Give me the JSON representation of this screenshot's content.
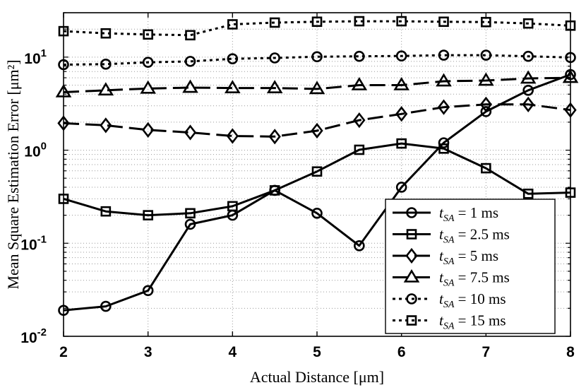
{
  "chart_data": {
    "type": "line",
    "xlabel": "Actual Distance [μm]",
    "ylabel": "Mean Square Estimation Error [μm²]",
    "xlim": [
      2,
      8
    ],
    "ylim": [
      0.01,
      30
    ],
    "yscale": "log",
    "grid": true,
    "legend_position": "bottom-right",
    "x_ticks": [
      "2",
      "3",
      "4",
      "5",
      "6",
      "7",
      "8"
    ],
    "x": [
      2,
      2.5,
      3,
      3.5,
      4,
      4.5,
      5,
      5.5,
      6,
      6.5,
      7,
      7.5,
      8
    ],
    "series": [
      {
        "name": "t_SA = 1 ms",
        "marker": "circle",
        "line": "solid",
        "values": [
          0.019,
          0.021,
          0.031,
          0.16,
          0.2,
          0.37,
          0.21,
          0.094,
          0.4,
          1.2,
          2.6,
          4.4,
          6.5
        ]
      },
      {
        "name": "t_SA = 2.5 ms",
        "marker": "square",
        "line": "solid",
        "values": [
          0.3,
          0.22,
          0.2,
          0.21,
          0.25,
          0.37,
          0.59,
          1.01,
          1.18,
          1.04,
          0.64,
          0.34,
          0.35
        ]
      },
      {
        "name": "t_SA = 5 ms",
        "marker": "diamond",
        "line": "dashed",
        "values": [
          1.95,
          1.85,
          1.65,
          1.55,
          1.42,
          1.4,
          1.62,
          2.1,
          2.45,
          2.9,
          3.1,
          3.1,
          2.7
        ]
      },
      {
        "name": "t_SA = 7.5 ms",
        "marker": "triangle",
        "line": "dashed",
        "values": [
          4.2,
          4.4,
          4.6,
          4.7,
          4.65,
          4.65,
          4.55,
          5.0,
          5.0,
          5.5,
          5.6,
          5.9,
          6.0
        ]
      },
      {
        "name": "t_SA = 10 ms",
        "marker": "circle",
        "line": "dotted",
        "values": [
          8.3,
          8.4,
          8.8,
          9.0,
          9.6,
          9.8,
          10.1,
          10.2,
          10.3,
          10.5,
          10.5,
          10.2,
          9.9
        ]
      },
      {
        "name": "t_SA = 15 ms",
        "marker": "square",
        "line": "dotted",
        "values": [
          19.0,
          18.0,
          17.5,
          17.2,
          22.5,
          23.5,
          24.0,
          24.3,
          24.3,
          24.0,
          23.8,
          23.0,
          21.8
        ]
      }
    ],
    "legend": [
      {
        "prefix": "t",
        "sub": "SA",
        "rest": " = 1 ms"
      },
      {
        "prefix": "t",
        "sub": "SA",
        "rest": " = 2.5 ms"
      },
      {
        "prefix": "t",
        "sub": "SA",
        "rest": " = 5 ms"
      },
      {
        "prefix": "t",
        "sub": "SA",
        "rest": " = 7.5 ms"
      },
      {
        "prefix": "t",
        "sub": "SA",
        "rest": " = 10 ms"
      },
      {
        "prefix": "t",
        "sub": "SA",
        "rest": " = 15 ms"
      }
    ],
    "y_tick_labels": [
      {
        "base": "10",
        "exp": "-2"
      },
      {
        "base": "10",
        "exp": "-1"
      },
      {
        "base": "10",
        "exp": "0"
      },
      {
        "base": "10",
        "exp": "1"
      }
    ]
  }
}
